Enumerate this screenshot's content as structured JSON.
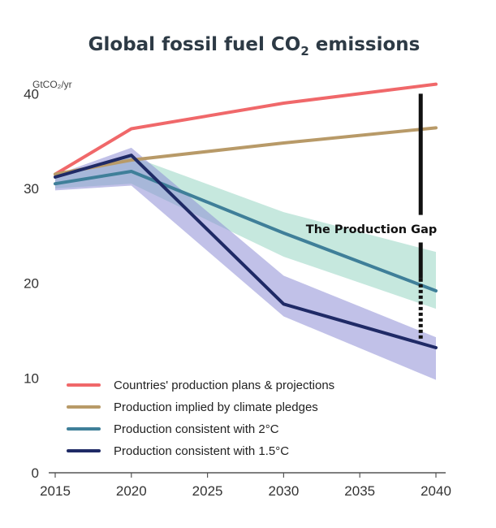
{
  "chart_data": {
    "type": "line",
    "title": "Global fossil fuel CO",
    "title_sub": "2",
    "title_suffix": " emissions",
    "ylabel": "GtCO₂/yr",
    "xlabel": "",
    "x": [
      2015,
      2020,
      2030,
      2040
    ],
    "xlim": [
      2015,
      2040
    ],
    "ylim": [
      0,
      42
    ],
    "xticks": [
      "2015",
      "2020",
      "2025",
      "2030",
      "2035",
      "2040"
    ],
    "yticks": [
      "0",
      "10",
      "20",
      "30",
      "40"
    ],
    "grid": false,
    "legend_position": "bottom-left",
    "series": [
      {
        "name": "Countries' production plans & projections",
        "color": "#f0686a",
        "values": [
          31.5,
          36.3,
          39.0,
          41.0
        ]
      },
      {
        "name": "Production implied by climate pledges",
        "color": "#b89a68",
        "values": [
          31.5,
          33.0,
          34.8,
          36.4
        ]
      },
      {
        "name": "Production consistent with 2°C",
        "color": "#3f7f99",
        "values": [
          30.5,
          31.8,
          25.3,
          19.2
        ]
      },
      {
        "name": "Production consistent with 1.5°C",
        "color": "#1f2a66",
        "values": [
          31.2,
          33.5,
          17.8,
          13.2
        ]
      }
    ],
    "bands": [
      {
        "series": "Production consistent with 2°C",
        "color": "#8ed1bd",
        "opacity": 0.5,
        "lower": [
          30.0,
          30.5,
          22.8,
          17.3
        ],
        "upper": [
          31.0,
          33.4,
          27.5,
          23.3
        ]
      },
      {
        "series": "Production consistent with 1.5°C",
        "color": "#8e8ed6",
        "opacity": 0.55,
        "lower": [
          29.8,
          30.3,
          16.5,
          9.8
        ],
        "upper": [
          31.4,
          34.3,
          20.8,
          14.3
        ]
      }
    ],
    "annotations": [
      {
        "text": "The Production Gap",
        "x": 2039,
        "y_top": 40,
        "y_bottom": 14
      }
    ]
  }
}
